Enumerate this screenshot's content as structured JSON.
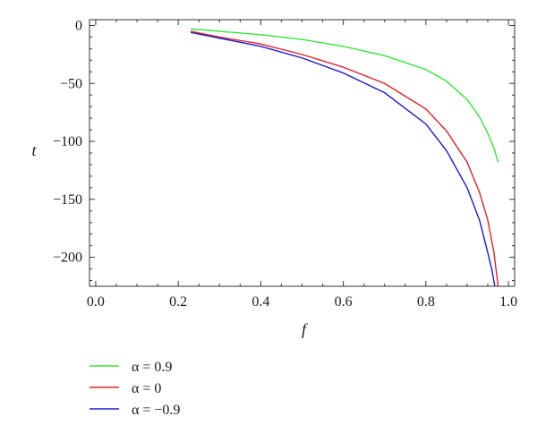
{
  "chart_data": {
    "type": "line",
    "xlabel": "f",
    "ylabel": "t",
    "xlim": [
      -0.015,
      1.015
    ],
    "ylim": [
      -225,
      5
    ],
    "x_ticks": [
      0.0,
      0.2,
      0.4,
      0.6,
      0.8,
      1.0
    ],
    "x_tick_labels": [
      "0.0",
      "0.2",
      "0.4",
      "0.6",
      "0.8",
      "1.0"
    ],
    "y_ticks": [
      0,
      -50,
      -100,
      -150,
      -200
    ],
    "y_tick_labels": [
      "0",
      "−50",
      "−100",
      "−150",
      "−200"
    ],
    "grid": false,
    "legend_position": "bottom-left",
    "series": [
      {
        "name": "α = 0.9",
        "color": "#33e633",
        "x": [
          0.23,
          0.3,
          0.4,
          0.5,
          0.6,
          0.7,
          0.8,
          0.85,
          0.9,
          0.93,
          0.95,
          0.965,
          0.975
        ],
        "y": [
          -3,
          -5,
          -8,
          -12,
          -18,
          -26,
          -38,
          -48,
          -64,
          -79,
          -93,
          -106,
          -118
        ]
      },
      {
        "name": "α = 0",
        "color": "#e0202a",
        "x": [
          0.23,
          0.3,
          0.4,
          0.5,
          0.6,
          0.7,
          0.8,
          0.85,
          0.9,
          0.93,
          0.95,
          0.965,
          0.975
        ],
        "y": [
          -5,
          -10,
          -16,
          -25,
          -36,
          -50,
          -72,
          -91,
          -118,
          -144,
          -168,
          -196,
          -225
        ]
      },
      {
        "name": "α = −0.9",
        "color": "#1a1acc",
        "x": [
          0.23,
          0.3,
          0.4,
          0.5,
          0.6,
          0.7,
          0.8,
          0.85,
          0.9,
          0.93,
          0.95,
          0.96,
          0.967
        ],
        "y": [
          -6,
          -11,
          -18,
          -28,
          -41,
          -58,
          -85,
          -108,
          -140,
          -168,
          -196,
          -211,
          -225
        ]
      }
    ]
  }
}
